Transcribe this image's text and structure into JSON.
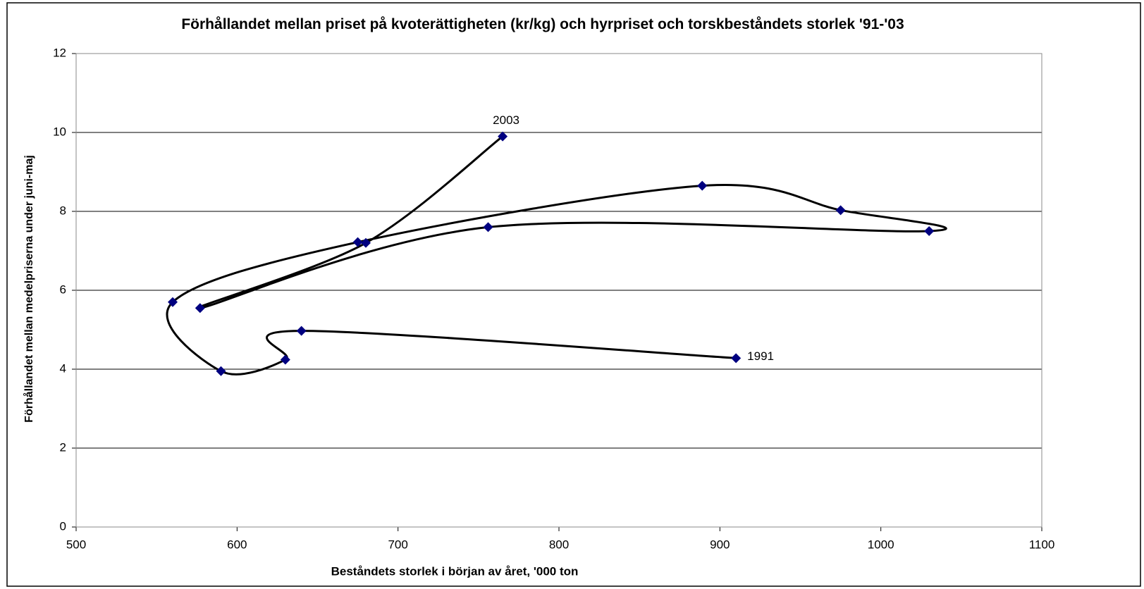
{
  "chart_data": {
    "type": "scatter",
    "title": "Förhållandet mellan priset på kvoterättigheten (kr/kg) och hyrpriset och torskbeståndets storlek '91-'03",
    "x_label": "Beståndets storlek i början av året, '000 ton",
    "y_label": "Förhållandet mellan medelpriserna under juni-maj",
    "series": [
      {
        "color": "#000080",
        "line_color": "#000000",
        "smooth": true,
        "x": [
          910,
          640,
          630,
          590,
          560,
          675,
          889,
          975,
          1030,
          756,
          577,
          680,
          765
        ],
        "values": [
          4.28,
          4.97,
          4.24,
          3.95,
          5.7,
          7.22,
          8.65,
          8.03,
          7.5,
          7.6,
          5.55,
          7.2,
          9.9
        ],
        "point_labels": [
          "1991",
          null,
          null,
          null,
          null,
          null,
          null,
          null,
          null,
          null,
          null,
          null,
          "2003"
        ]
      }
    ],
    "xlim": [
      500,
      1100
    ],
    "xticks": [
      500,
      600,
      700,
      800,
      900,
      1000,
      1100
    ],
    "ylim": [
      0,
      12
    ],
    "yticks": [
      0,
      2,
      4,
      6,
      8,
      10,
      12
    ],
    "grid": true
  }
}
